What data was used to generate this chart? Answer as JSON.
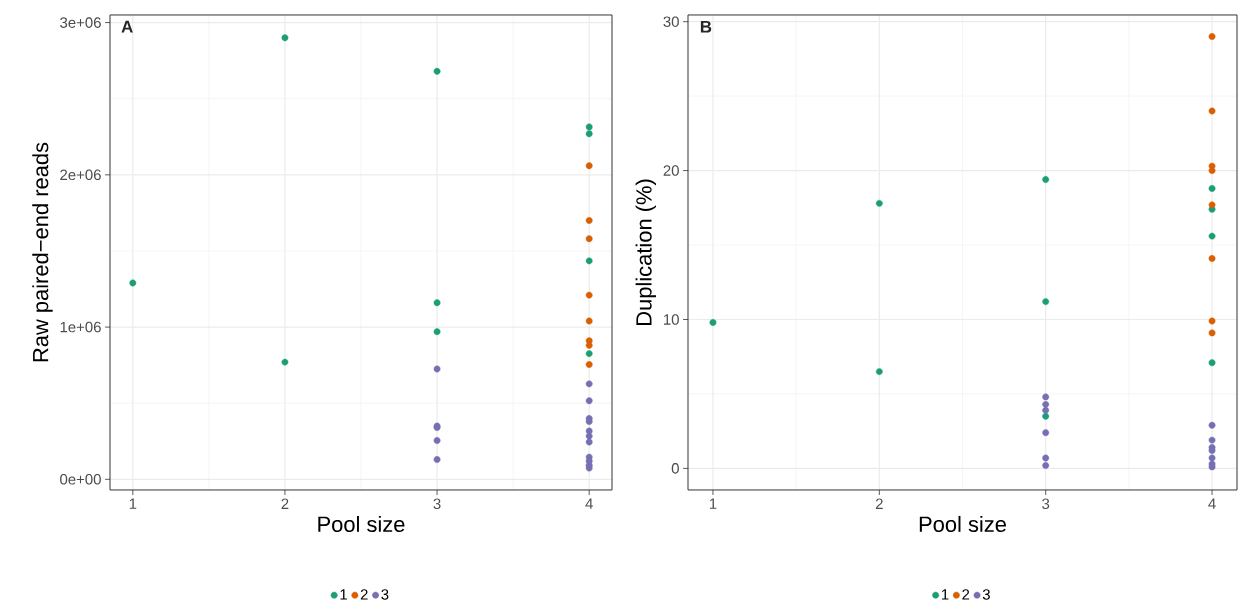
{
  "chart_data": [
    {
      "type": "scatter",
      "xlabel": "Pool size",
      "ylabel": "Raw paired−end reads",
      "annotations": [
        "A"
      ],
      "xlim": [
        0.85,
        4.15
      ],
      "xticks": [
        1,
        2,
        3,
        4
      ],
      "ylim": [
        -70000,
        3050000
      ],
      "yticks": [
        {
          "value": 0,
          "label": "0e+00"
        },
        {
          "value": 1000000,
          "label": "1e+06"
        },
        {
          "value": 2000000,
          "label": "2e+06"
        },
        {
          "value": 3000000,
          "label": "3e+06"
        }
      ],
      "grid": true,
      "legend": "bottom",
      "series": [
        {
          "name": "1",
          "color": "#1b9e77",
          "x": [
            1,
            2,
            2,
            3,
            3,
            3,
            4,
            4,
            4,
            4
          ],
          "values": [
            1290000,
            2900000,
            770000,
            2680000,
            1160000,
            970000,
            2315000,
            2270000,
            1435000,
            826000
          ]
        },
        {
          "name": "2",
          "color": "#d95f02",
          "x": [
            4,
            4,
            4,
            4,
            4,
            4,
            4,
            4
          ],
          "values": [
            2060000,
            1700000,
            1580000,
            1210000,
            1040000,
            910000,
            880000,
            754000
          ]
        },
        {
          "name": "3",
          "color": "#7570b3",
          "x": [
            3,
            3,
            3,
            3,
            3,
            4,
            4,
            4,
            4,
            4,
            4,
            4,
            4,
            4,
            4,
            4
          ],
          "values": [
            725000,
            350000,
            340000,
            255000,
            130000,
            627000,
            516000,
            400000,
            380000,
            317000,
            284000,
            245000,
            146000,
            120000,
            92000,
            74000
          ]
        }
      ]
    },
    {
      "type": "scatter",
      "xlabel": "Pool size",
      "ylabel": "Duplication (%)",
      "annotations": [
        "B"
      ],
      "xlim": [
        0.85,
        4.15
      ],
      "xticks": [
        1,
        2,
        3,
        4
      ],
      "ylim": [
        -1.45,
        30.45
      ],
      "yticks": [
        0,
        10,
        20,
        30
      ],
      "grid": true,
      "legend": "bottom",
      "series": [
        {
          "name": "1",
          "color": "#1b9e77",
          "x": [
            1,
            2,
            2,
            3,
            3,
            3,
            4,
            4,
            4,
            4
          ],
          "values": [
            9.8,
            17.8,
            6.5,
            19.4,
            11.2,
            3.5,
            18.8,
            17.4,
            15.6,
            7.1
          ]
        },
        {
          "name": "2",
          "color": "#d95f02",
          "x": [
            4,
            4,
            4,
            4,
            4,
            4,
            4,
            4
          ],
          "values": [
            29.0,
            24.0,
            20.3,
            20.0,
            17.7,
            14.1,
            9.9,
            9.1
          ]
        },
        {
          "name": "3",
          "color": "#7570b3",
          "x": [
            3,
            3,
            3,
            3,
            3,
            3,
            4,
            4,
            4,
            4,
            4,
            4,
            4
          ],
          "values": [
            4.8,
            4.3,
            3.9,
            2.4,
            0.7,
            0.2,
            2.9,
            1.9,
            1.4,
            1.2,
            0.7,
            0.3,
            0.1
          ]
        }
      ]
    }
  ]
}
